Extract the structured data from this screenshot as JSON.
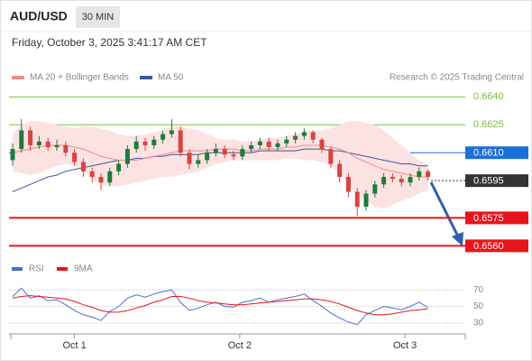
{
  "chart_data": {
    "type": "candlestick",
    "title": "AUD/USD",
    "timeframe": "30 MIN",
    "subtitle": "Friday, October 3, 2025 3:41:17 AM CET",
    "credit": "Research © 2025 Trading Central",
    "ylim": [
      0.655,
      0.6645
    ],
    "xlim": [
      0,
      47
    ],
    "xticks": [
      {
        "value": 7,
        "label": "Oct 1"
      },
      {
        "value": 25.7,
        "label": "Oct 2"
      },
      {
        "value": 44.4,
        "label": "Oct 3"
      }
    ],
    "up_color": "#1e7b3c",
    "down_color": "#d64541",
    "band_color": "#fde2e2",
    "candles": [
      [
        0.6606,
        0.6615,
        0.6603,
        0.6612
      ],
      [
        0.6612,
        0.6628,
        0.661,
        0.6622
      ],
      [
        0.6622,
        0.6624,
        0.6611,
        0.6614
      ],
      [
        0.6614,
        0.6619,
        0.6612,
        0.6616
      ],
      [
        0.6616,
        0.6618,
        0.6611,
        0.6613
      ],
      [
        0.6613,
        0.6617,
        0.6611,
        0.6614
      ],
      [
        0.6614,
        0.6616,
        0.6608,
        0.661
      ],
      [
        0.661,
        0.6612,
        0.6603,
        0.6605
      ],
      [
        0.6605,
        0.6607,
        0.6597,
        0.66
      ],
      [
        0.66,
        0.6602,
        0.6594,
        0.6597
      ],
      [
        0.6597,
        0.6599,
        0.659,
        0.6594
      ],
      [
        0.6594,
        0.6602,
        0.6592,
        0.66
      ],
      [
        0.66,
        0.6606,
        0.6598,
        0.6604
      ],
      [
        0.6604,
        0.6614,
        0.6602,
        0.6612
      ],
      [
        0.6612,
        0.6619,
        0.661,
        0.6616
      ],
      [
        0.6616,
        0.6618,
        0.6611,
        0.6614
      ],
      [
        0.6614,
        0.6619,
        0.6612,
        0.6617
      ],
      [
        0.6617,
        0.6622,
        0.6615,
        0.662
      ],
      [
        0.662,
        0.6628,
        0.6618,
        0.6622
      ],
      [
        0.6622,
        0.6624,
        0.6608,
        0.661
      ],
      [
        0.661,
        0.6612,
        0.6601,
        0.6604
      ],
      [
        0.6604,
        0.6609,
        0.6602,
        0.6606
      ],
      [
        0.6606,
        0.6612,
        0.6604,
        0.661
      ],
      [
        0.661,
        0.6615,
        0.6608,
        0.6612
      ],
      [
        0.6612,
        0.6614,
        0.6607,
        0.6609
      ],
      [
        0.6609,
        0.6611,
        0.6606,
        0.6608
      ],
      [
        0.6608,
        0.6614,
        0.6606,
        0.6612
      ],
      [
        0.6612,
        0.6616,
        0.661,
        0.6614
      ],
      [
        0.6614,
        0.6618,
        0.6612,
        0.6616
      ],
      [
        0.6616,
        0.6618,
        0.6611,
        0.6613
      ],
      [
        0.6613,
        0.6617,
        0.6611,
        0.6615
      ],
      [
        0.6615,
        0.6619,
        0.6613,
        0.6617
      ],
      [
        0.6617,
        0.6621,
        0.6615,
        0.6619
      ],
      [
        0.6619,
        0.6623,
        0.6617,
        0.6621
      ],
      [
        0.6621,
        0.6622,
        0.6615,
        0.6617
      ],
      [
        0.6617,
        0.6618,
        0.661,
        0.6612
      ],
      [
        0.6612,
        0.6613,
        0.6602,
        0.6604
      ],
      [
        0.6604,
        0.6606,
        0.6594,
        0.6597
      ],
      [
        0.6597,
        0.6599,
        0.6586,
        0.6589
      ],
      [
        0.6589,
        0.6591,
        0.6576,
        0.6581
      ],
      [
        0.6581,
        0.659,
        0.6579,
        0.6588
      ],
      [
        0.6588,
        0.6595,
        0.6586,
        0.6593
      ],
      [
        0.6593,
        0.6599,
        0.6591,
        0.6597
      ],
      [
        0.6597,
        0.6599,
        0.6594,
        0.6596
      ],
      [
        0.6596,
        0.6598,
        0.6592,
        0.6594
      ],
      [
        0.6594,
        0.6599,
        0.6592,
        0.6597
      ],
      [
        0.6597,
        0.6602,
        0.6595,
        0.66
      ],
      [
        0.66,
        0.6601,
        0.6595,
        0.6597
      ]
    ],
    "series": [
      {
        "name": "MA 20 + Bollinger Bands",
        "color": "#f08a8a",
        "values": [
          0.661,
          0.6611,
          0.6612,
          0.6613,
          0.6614,
          0.6614,
          0.6614,
          0.6613,
          0.6612,
          0.661,
          0.6608,
          0.6607,
          0.6606,
          0.6606,
          0.6606,
          0.6607,
          0.6608,
          0.6609,
          0.661,
          0.6611,
          0.6611,
          0.6611,
          0.6611,
          0.6612,
          0.6612,
          0.6612,
          0.6611,
          0.6611,
          0.6612,
          0.6612,
          0.6612,
          0.6613,
          0.6613,
          0.6614,
          0.6614,
          0.6614,
          0.6613,
          0.6612,
          0.661,
          0.6607,
          0.6605,
          0.6603,
          0.6601,
          0.66,
          0.6599,
          0.6598,
          0.6597,
          0.6597
        ],
        "upper": [
          0.662,
          0.6625,
          0.6627,
          0.6627,
          0.6626,
          0.6625,
          0.6624,
          0.6623,
          0.6624,
          0.6624,
          0.6623,
          0.6622,
          0.662,
          0.6619,
          0.6619,
          0.662,
          0.6621,
          0.6622,
          0.6624,
          0.6624,
          0.6623,
          0.6622,
          0.662,
          0.6618,
          0.6617,
          0.6617,
          0.6616,
          0.6616,
          0.6617,
          0.6618,
          0.6618,
          0.6619,
          0.662,
          0.6622,
          0.6622,
          0.6622,
          0.6623,
          0.6625,
          0.6627,
          0.6627,
          0.6626,
          0.6625,
          0.6622,
          0.6618,
          0.6614,
          0.661,
          0.6606,
          0.6604
        ],
        "lower": [
          0.66,
          0.6599,
          0.6598,
          0.6599,
          0.6601,
          0.6603,
          0.6604,
          0.6603,
          0.66,
          0.6596,
          0.6593,
          0.6592,
          0.6592,
          0.6593,
          0.6594,
          0.6595,
          0.6596,
          0.6597,
          0.6597,
          0.6598,
          0.6599,
          0.66,
          0.6602,
          0.6604,
          0.6605,
          0.6606,
          0.6606,
          0.6606,
          0.6606,
          0.6606,
          0.6606,
          0.6607,
          0.6607,
          0.6606,
          0.6606,
          0.6605,
          0.6603,
          0.6599,
          0.6593,
          0.6587,
          0.6584,
          0.6581,
          0.658,
          0.6582,
          0.6584,
          0.6586,
          0.6588,
          0.659
        ]
      },
      {
        "name": "MA 50",
        "color": "#3b5998",
        "values": [
          0.6589,
          0.6591,
          0.6593,
          0.6595,
          0.6597,
          0.6598,
          0.66,
          0.6601,
          0.6602,
          0.6603,
          0.6604,
          0.6605,
          0.6606,
          0.6606,
          0.6607,
          0.6607,
          0.6608,
          0.6608,
          0.6609,
          0.6609,
          0.6609,
          0.6609,
          0.661,
          0.661,
          0.661,
          0.661,
          0.661,
          0.661,
          0.6611,
          0.6611,
          0.6611,
          0.6611,
          0.6611,
          0.6612,
          0.6612,
          0.6612,
          0.6611,
          0.6611,
          0.661,
          0.6609,
          0.6608,
          0.6607,
          0.6606,
          0.6605,
          0.6604,
          0.6604,
          0.6603,
          0.6603
        ]
      }
    ],
    "levels": [
      {
        "value": 0.664,
        "label": "0.6640",
        "color": "#7cbf3c",
        "style": "thin"
      },
      {
        "value": 0.6625,
        "label": "0.6625",
        "color": "#7cbf3c",
        "style": "thin"
      },
      {
        "value": 0.661,
        "label": "0.6610",
        "color": "#1a6fd8",
        "style": "box"
      },
      {
        "value": 0.6595,
        "label": "0.6595",
        "color": "#333333",
        "style": "current"
      },
      {
        "value": 0.6575,
        "label": "0.6575",
        "color": "#e8141b",
        "style": "thick"
      },
      {
        "value": 0.656,
        "label": "0.6560",
        "color": "#e8141b",
        "style": "thick"
      }
    ],
    "rsi": {
      "ylim": [
        20,
        80
      ],
      "yticks": [
        70,
        50,
        30
      ],
      "series": [
        {
          "name": "RSI",
          "color": "#4a6fd0",
          "values": [
            62,
            72,
            60,
            63,
            57,
            58,
            52,
            45,
            40,
            37,
            33,
            44,
            50,
            60,
            64,
            61,
            65,
            68,
            70,
            55,
            45,
            48,
            52,
            55,
            50,
            49,
            55,
            57,
            60,
            55,
            58,
            60,
            62,
            65,
            57,
            50,
            42,
            36,
            31,
            28,
            40,
            45,
            50,
            48,
            46,
            50,
            55,
            49
          ]
        },
        {
          "name": "9MA",
          "color": "#e8141b",
          "values": [
            60,
            62,
            63,
            62,
            61,
            60,
            59,
            56,
            52,
            49,
            45,
            43,
            43,
            45,
            48,
            51,
            55,
            58,
            62,
            62,
            60,
            57,
            55,
            54,
            53,
            52,
            52,
            53,
            54,
            55,
            56,
            57,
            58,
            59,
            59,
            58,
            56,
            53,
            49,
            45,
            42,
            40,
            40,
            41,
            43,
            45,
            46,
            47
          ]
        }
      ]
    }
  }
}
